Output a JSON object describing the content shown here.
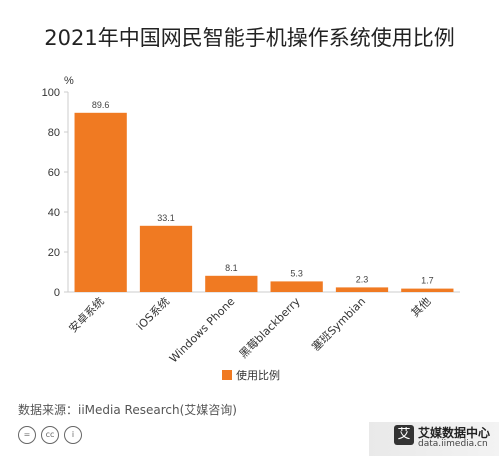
{
  "chart_data": {
    "type": "bar",
    "title": "2021年中国网民智能手机操作系统使用比例",
    "ylabel": "%",
    "ylim": [
      0,
      100
    ],
    "yticks": [
      0,
      20,
      40,
      60,
      80,
      100
    ],
    "categories": [
      "安卓系统",
      "iOS系统",
      "Windows Phone",
      "黑莓blackberry",
      "塞班Symbian",
      "其他"
    ],
    "series": [
      {
        "name": "使用比例",
        "values": [
          89.6,
          33.1,
          8.1,
          5.3,
          2.3,
          1.7
        ],
        "color": "#f07a22"
      }
    ],
    "value_labels": [
      "89.6",
      "33.1",
      "8.1",
      "5.3",
      "2.3",
      "1.7"
    ],
    "legend": "bottom-center",
    "grid": false
  },
  "source": "数据来源：iiMedia Research(艾媒咨询)",
  "brand": {
    "name": "艾媒数据中心",
    "url": "data.iimedia.cn",
    "logo": "艾"
  },
  "colors": {
    "bar": "#f07a22",
    "axis": "#cccccc"
  }
}
